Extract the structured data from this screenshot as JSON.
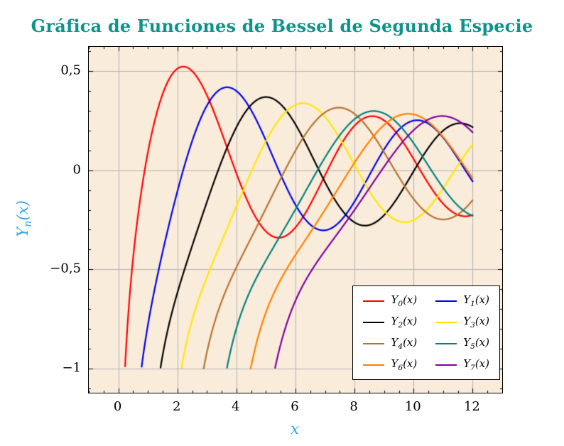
{
  "page": {
    "background": "#ffffff"
  },
  "chart_data": {
    "type": "line",
    "title": "Gráfica de Funciones de Bessel de Segunda Especie",
    "title_color": "#0d9488",
    "xlabel": "x",
    "ylabel": "Y_n(x)",
    "axis_label_color": "#35a7e3",
    "plot_background": "#f9ecdb",
    "grid": "major",
    "grid_color": "#b3b3b3",
    "axis_color": "#000000",
    "tick_label_color": "#000000",
    "xlim": [
      -1,
      13
    ],
    "ylim": [
      -1.12,
      0.62
    ],
    "x_max_data": 12,
    "curve_start_y": -1.0,
    "x_ticks": {
      "values": [
        0,
        2,
        4,
        6,
        8,
        10,
        12
      ],
      "labels": [
        "0",
        "2",
        "4",
        "6",
        "8",
        "10",
        "12"
      ]
    },
    "y_ticks": {
      "values": [
        0.5,
        0,
        -0.5,
        -1
      ],
      "labels": [
        "0,5",
        "0",
        "−0,5",
        "−1"
      ]
    },
    "x_minor_step": 0.5,
    "y_minor_step": 0.1,
    "legend": {
      "position": "bottom-right",
      "columns": 2,
      "background": "#ffffff",
      "border_color": "#000000"
    },
    "series": [
      {
        "label": "Y_0(x)",
        "n": 0,
        "color": "#ff0000"
      },
      {
        "label": "Y_1(x)",
        "n": 1,
        "color": "#0000ee"
      },
      {
        "label": "Y_2(x)",
        "n": 2,
        "color": "#000000"
      },
      {
        "label": "Y_3(x)",
        "n": 3,
        "color": "#ffe600"
      },
      {
        "label": "Y_4(x)",
        "n": 4,
        "color": "#b5732f"
      },
      {
        "label": "Y_5(x)",
        "n": 5,
        "color": "#008080"
      },
      {
        "label": "Y_6(x)",
        "n": 6,
        "color": "#ff8000"
      },
      {
        "label": "Y_7(x)",
        "n": 7,
        "color": "#8000a0"
      }
    ]
  }
}
